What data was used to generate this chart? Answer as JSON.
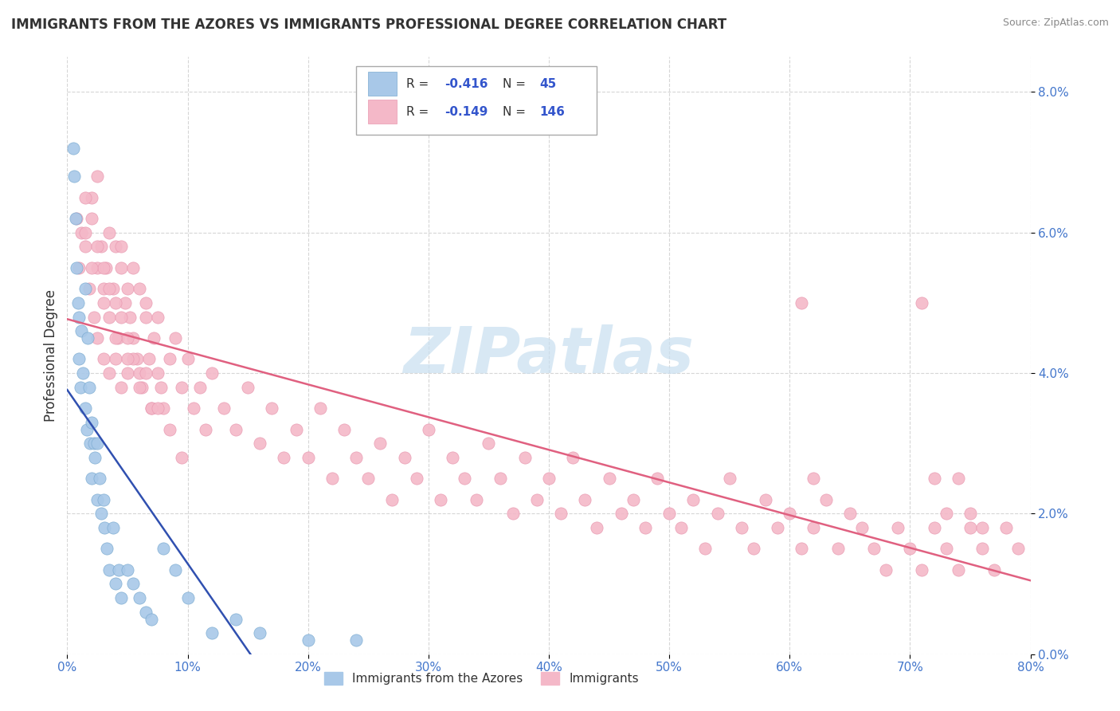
{
  "title": "IMMIGRANTS FROM THE AZORES VS IMMIGRANTS PROFESSIONAL DEGREE CORRELATION CHART",
  "source": "Source: ZipAtlas.com",
  "ylabel": "Professional Degree",
  "legend_label1": "Immigrants from the Azores",
  "legend_label2": "Immigrants",
  "blue_color": "#a8c8e8",
  "pink_color": "#f4b8c8",
  "blue_line_color": "#3050b0",
  "pink_line_color": "#e06080",
  "blue_marker_edge": "#7aaad0",
  "pink_marker_edge": "#e898b0",
  "xlim": [
    0.0,
    0.8
  ],
  "ylim": [
    0.0,
    0.085
  ],
  "xticks": [
    0.0,
    0.1,
    0.2,
    0.3,
    0.4,
    0.5,
    0.6,
    0.7,
    0.8
  ],
  "yticks": [
    0.0,
    0.02,
    0.04,
    0.06,
    0.08
  ],
  "blue_x": [
    0.005,
    0.006,
    0.007,
    0.008,
    0.009,
    0.01,
    0.01,
    0.011,
    0.012,
    0.013,
    0.015,
    0.015,
    0.016,
    0.017,
    0.018,
    0.019,
    0.02,
    0.02,
    0.022,
    0.023,
    0.025,
    0.025,
    0.027,
    0.028,
    0.03,
    0.031,
    0.033,
    0.035,
    0.038,
    0.04,
    0.043,
    0.045,
    0.05,
    0.055,
    0.06,
    0.065,
    0.07,
    0.08,
    0.09,
    0.1,
    0.12,
    0.14,
    0.16,
    0.2,
    0.24
  ],
  "blue_y": [
    0.072,
    0.068,
    0.062,
    0.055,
    0.05,
    0.048,
    0.042,
    0.038,
    0.046,
    0.04,
    0.052,
    0.035,
    0.032,
    0.045,
    0.038,
    0.03,
    0.033,
    0.025,
    0.03,
    0.028,
    0.03,
    0.022,
    0.025,
    0.02,
    0.022,
    0.018,
    0.015,
    0.012,
    0.018,
    0.01,
    0.012,
    0.008,
    0.012,
    0.01,
    0.008,
    0.006,
    0.005,
    0.015,
    0.012,
    0.008,
    0.003,
    0.005,
    0.003,
    0.002,
    0.002
  ],
  "pink_x": [
    0.008,
    0.01,
    0.012,
    0.015,
    0.018,
    0.02,
    0.022,
    0.025,
    0.025,
    0.028,
    0.03,
    0.03,
    0.032,
    0.035,
    0.035,
    0.038,
    0.04,
    0.04,
    0.042,
    0.045,
    0.045,
    0.048,
    0.05,
    0.05,
    0.052,
    0.055,
    0.058,
    0.06,
    0.062,
    0.065,
    0.068,
    0.07,
    0.072,
    0.075,
    0.078,
    0.08,
    0.085,
    0.09,
    0.095,
    0.1,
    0.105,
    0.11,
    0.115,
    0.12,
    0.13,
    0.14,
    0.15,
    0.16,
    0.17,
    0.18,
    0.19,
    0.2,
    0.21,
    0.22,
    0.23,
    0.24,
    0.25,
    0.26,
    0.27,
    0.28,
    0.29,
    0.3,
    0.31,
    0.32,
    0.33,
    0.34,
    0.35,
    0.36,
    0.37,
    0.38,
    0.39,
    0.4,
    0.41,
    0.42,
    0.43,
    0.44,
    0.45,
    0.46,
    0.47,
    0.48,
    0.49,
    0.5,
    0.51,
    0.52,
    0.53,
    0.54,
    0.55,
    0.56,
    0.57,
    0.58,
    0.59,
    0.6,
    0.61,
    0.62,
    0.63,
    0.64,
    0.65,
    0.66,
    0.67,
    0.68,
    0.69,
    0.7,
    0.71,
    0.72,
    0.73,
    0.74,
    0.75,
    0.76,
    0.77,
    0.78,
    0.79,
    0.015,
    0.025,
    0.035,
    0.045,
    0.055,
    0.065,
    0.075,
    0.02,
    0.03,
    0.04,
    0.05,
    0.06,
    0.07,
    0.015,
    0.025,
    0.035,
    0.045,
    0.055,
    0.065,
    0.02,
    0.03,
    0.04,
    0.05,
    0.06,
    0.075,
    0.085,
    0.095,
    0.61,
    0.62,
    0.71,
    0.72,
    0.73,
    0.74,
    0.75,
    0.76
  ],
  "pink_y": [
    0.062,
    0.055,
    0.06,
    0.058,
    0.052,
    0.065,
    0.048,
    0.055,
    0.045,
    0.058,
    0.052,
    0.042,
    0.055,
    0.048,
    0.04,
    0.052,
    0.058,
    0.042,
    0.045,
    0.055,
    0.038,
    0.05,
    0.052,
    0.04,
    0.048,
    0.045,
    0.042,
    0.052,
    0.038,
    0.048,
    0.042,
    0.035,
    0.045,
    0.04,
    0.038,
    0.035,
    0.042,
    0.045,
    0.038,
    0.042,
    0.035,
    0.038,
    0.032,
    0.04,
    0.035,
    0.032,
    0.038,
    0.03,
    0.035,
    0.028,
    0.032,
    0.028,
    0.035,
    0.025,
    0.032,
    0.028,
    0.025,
    0.03,
    0.022,
    0.028,
    0.025,
    0.032,
    0.022,
    0.028,
    0.025,
    0.022,
    0.03,
    0.025,
    0.02,
    0.028,
    0.022,
    0.025,
    0.02,
    0.028,
    0.022,
    0.018,
    0.025,
    0.02,
    0.022,
    0.018,
    0.025,
    0.02,
    0.018,
    0.022,
    0.015,
    0.02,
    0.025,
    0.018,
    0.015,
    0.022,
    0.018,
    0.02,
    0.015,
    0.018,
    0.022,
    0.015,
    0.02,
    0.018,
    0.015,
    0.012,
    0.018,
    0.015,
    0.012,
    0.018,
    0.015,
    0.012,
    0.018,
    0.015,
    0.012,
    0.018,
    0.015,
    0.065,
    0.068,
    0.06,
    0.058,
    0.055,
    0.05,
    0.048,
    0.062,
    0.055,
    0.05,
    0.045,
    0.04,
    0.035,
    0.06,
    0.058,
    0.052,
    0.048,
    0.042,
    0.04,
    0.055,
    0.05,
    0.045,
    0.042,
    0.038,
    0.035,
    0.032,
    0.028,
    0.05,
    0.025,
    0.05,
    0.025,
    0.02,
    0.025,
    0.02,
    0.018
  ],
  "watermark_text": "ZIPatlas",
  "watermark_color": "#c8dff0",
  "background_color": "#ffffff",
  "grid_color": "#cccccc",
  "grid_style": "--",
  "title_color": "#333333",
  "axis_tick_color": "#4477cc",
  "ylabel_color": "#333333",
  "legend_edge_color": "#aaaaaa",
  "legend_text_color": "#333333",
  "legend_r_color": "#3355cc",
  "legend_n_color": "#333333"
}
